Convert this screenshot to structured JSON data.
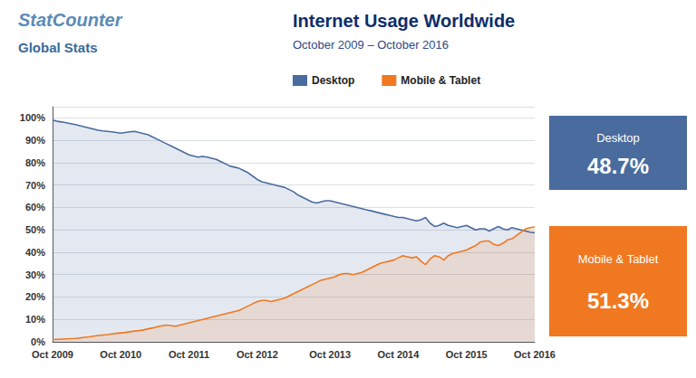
{
  "chart_data": {
    "type": "area",
    "title": "Internet Usage Worldwide",
    "subtitle": "October 2009 – October 2016",
    "categories": [
      "Oct 2009",
      null,
      null,
      null,
      null,
      null,
      null,
      null,
      null,
      null,
      null,
      null,
      null,
      null,
      null,
      "Oct 2010",
      null,
      null,
      null,
      null,
      null,
      null,
      null,
      null,
      null,
      null,
      null,
      null,
      null,
      null,
      "Oct 2011",
      null,
      null,
      null,
      null,
      null,
      null,
      null,
      null,
      null,
      null,
      null,
      null,
      null,
      null,
      "Oct 2012",
      null,
      null,
      null,
      null,
      null,
      null,
      null,
      null,
      null,
      null,
      null,
      null,
      null,
      null,
      null,
      "Oct 2013",
      null,
      null,
      null,
      null,
      null,
      null,
      null,
      null,
      null,
      null,
      null,
      null,
      null,
      null,
      "Oct 2014",
      null,
      null,
      null,
      null,
      null,
      null,
      null,
      null,
      null,
      null,
      null,
      null,
      null,
      null,
      "Oct 2015",
      null,
      null,
      null,
      null,
      null,
      null,
      null,
      null,
      null,
      null,
      null,
      null,
      null,
      null,
      "Oct 2016"
    ],
    "series": [
      {
        "name": "Desktop",
        "color": "#4a6b9e",
        "values": [
          99.0,
          98.5,
          98.2,
          97.8,
          97.4,
          97.0,
          96.5,
          96.0,
          95.5,
          95.0,
          94.5,
          94.2,
          94.0,
          93.8,
          93.5,
          93.2,
          93.5,
          93.8,
          94.0,
          93.5,
          93.0,
          92.5,
          91.5,
          90.5,
          89.5,
          88.5,
          87.5,
          86.5,
          85.5,
          84.5,
          83.5,
          83.0,
          82.5,
          82.8,
          82.5,
          82.0,
          81.5,
          80.5,
          79.5,
          78.5,
          78.0,
          77.5,
          76.5,
          75.5,
          74.0,
          72.5,
          71.5,
          71.0,
          70.5,
          70.0,
          69.5,
          69.0,
          68.0,
          67.0,
          65.5,
          64.5,
          63.5,
          62.5,
          62.0,
          62.5,
          63.0,
          63.0,
          62.5,
          62.0,
          61.5,
          61.0,
          60.5,
          60.0,
          59.5,
          59.0,
          58.5,
          58.0,
          57.5,
          57.0,
          56.5,
          56.0,
          55.5,
          55.5,
          55.0,
          54.5,
          54.0,
          54.5,
          55.5,
          53.0,
          51.5,
          52.0,
          53.0,
          52.0,
          51.5,
          51.0,
          51.5,
          52.0,
          51.0,
          50.0,
          50.5,
          50.5,
          49.5,
          50.5,
          51.5,
          50.5,
          50.0,
          51.0,
          50.5,
          50.0,
          49.5,
          49.0,
          48.7
        ]
      },
      {
        "name": "Mobile & Tablet",
        "color": "#f07820",
        "values": [
          1.0,
          1.1,
          1.2,
          1.3,
          1.4,
          1.5,
          1.7,
          2.0,
          2.2,
          2.5,
          2.8,
          3.0,
          3.2,
          3.5,
          3.8,
          4.0,
          4.2,
          4.5,
          4.8,
          5.0,
          5.3,
          5.8,
          6.2,
          6.8,
          7.2,
          7.5,
          7.3,
          7.0,
          7.5,
          8.0,
          8.5,
          9.0,
          9.5,
          10.0,
          10.5,
          11.0,
          11.5,
          12.0,
          12.5,
          13.0,
          13.5,
          14.0,
          15.0,
          16.0,
          17.0,
          18.0,
          18.5,
          18.5,
          18.0,
          18.5,
          19.0,
          19.5,
          20.5,
          21.5,
          22.5,
          23.5,
          24.5,
          25.5,
          26.5,
          27.5,
          28.0,
          28.5,
          29.0,
          30.0,
          30.5,
          30.5,
          30.0,
          30.5,
          31.0,
          32.0,
          33.0,
          34.0,
          35.0,
          35.5,
          36.0,
          36.5,
          37.5,
          38.5,
          38.0,
          37.5,
          38.0,
          36.0,
          34.5,
          37.0,
          38.5,
          38.0,
          36.5,
          38.5,
          39.5,
          40.0,
          40.5,
          41.0,
          42.0,
          43.0,
          44.5,
          45.0,
          45.0,
          43.5,
          43.0,
          44.0,
          45.5,
          46.0,
          47.5,
          49.0,
          50.5,
          51.0,
          51.3
        ]
      }
    ],
    "ylim": [
      0,
      105
    ],
    "yticks": [
      {
        "value": 0,
        "label": "0%"
      },
      {
        "value": 10,
        "label": "10%"
      },
      {
        "value": 20,
        "label": "20%"
      },
      {
        "value": 30,
        "label": "30%"
      },
      {
        "value": 40,
        "label": "40%"
      },
      {
        "value": 50,
        "label": "50%"
      },
      {
        "value": 60,
        "label": "60%"
      },
      {
        "value": 70,
        "label": "70%"
      },
      {
        "value": 80,
        "label": "80%"
      },
      {
        "value": 90,
        "label": "90%"
      },
      {
        "value": 100,
        "label": "100%"
      }
    ],
    "grid": true,
    "legend": "top",
    "annotations": [
      {
        "text": "Desktop",
        "label": "48.7%",
        "color": "#4a6b9e"
      },
      {
        "text": "Mobile & Tablet",
        "label": "51.3%",
        "color": "#f07820"
      },
      {
        "text": "StatCounter"
      },
      {
        "text": "Global Stats"
      }
    ]
  }
}
